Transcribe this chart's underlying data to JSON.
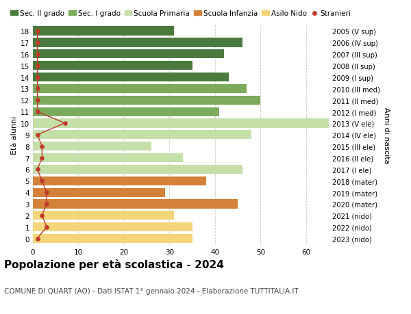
{
  "ages": [
    18,
    17,
    16,
    15,
    14,
    13,
    12,
    11,
    10,
    9,
    8,
    7,
    6,
    5,
    4,
    3,
    2,
    1,
    0
  ],
  "bar_values": [
    31,
    46,
    42,
    35,
    43,
    47,
    50,
    41,
    65,
    48,
    26,
    33,
    46,
    38,
    29,
    45,
    31,
    35,
    35
  ],
  "bar_colors": [
    "#4a7a3d",
    "#4a7a3d",
    "#4a7a3d",
    "#4a7a3d",
    "#4a7a3d",
    "#7aaa5a",
    "#7aaa5a",
    "#7aaa5a",
    "#c5dfa8",
    "#c5dfa8",
    "#c5dfa8",
    "#c5dfa8",
    "#c5dfa8",
    "#d4813a",
    "#d4813a",
    "#d4813a",
    "#f5d57a",
    "#f5d57a",
    "#f5d57a"
  ],
  "right_labels": [
    "2005 (V sup)",
    "2006 (IV sup)",
    "2007 (III sup)",
    "2008 (II sup)",
    "2009 (I sup)",
    "2010 (III med)",
    "2011 (II med)",
    "2012 (I med)",
    "2013 (V ele)",
    "2014 (IV ele)",
    "2015 (III ele)",
    "2016 (II ele)",
    "2017 (I ele)",
    "2018 (mater)",
    "2019 (mater)",
    "2020 (mater)",
    "2021 (nido)",
    "2022 (nido)",
    "2023 (nido)"
  ],
  "stranieri_values": [
    1,
    1,
    1,
    1,
    1,
    1,
    1,
    1,
    7,
    1,
    2,
    2,
    1,
    2,
    3,
    3,
    2,
    3,
    1
  ],
  "ylabel": "Età alunni",
  "right_ylabel": "Anni di nascita",
  "title": "Popolazione per età scolastica - 2024",
  "subtitle": "COMUNE DI QUART (AO) - Dati ISTAT 1° gennaio 2024 - Elaborazione TUTTITALIA.IT",
  "xlim": [
    0,
    65
  ],
  "xticks": [
    0,
    10,
    20,
    30,
    40,
    50,
    60
  ],
  "legend_items": [
    {
      "label": "Sec. II grado",
      "color": "#4a7a3d",
      "type": "patch"
    },
    {
      "label": "Sec. I grado",
      "color": "#7aaa5a",
      "type": "patch"
    },
    {
      "label": "Scuola Primaria",
      "color": "#c5dfa8",
      "type": "patch"
    },
    {
      "label": "Scuola Infanzia",
      "color": "#d4813a",
      "type": "patch"
    },
    {
      "label": "Asilo Nido",
      "color": "#f5d57a",
      "type": "patch"
    },
    {
      "label": "Stranieri",
      "color": "#c0392b",
      "type": "dot"
    }
  ],
  "background_color": "#ffffff",
  "grid_color": "#cccccc",
  "bar_height": 0.78,
  "title_fontsize": 11,
  "subtitle_fontsize": 7.5,
  "axis_fontsize": 8,
  "tick_fontsize": 7.5,
  "legend_fontsize": 7.5,
  "stranieri_color": "#c0392b"
}
